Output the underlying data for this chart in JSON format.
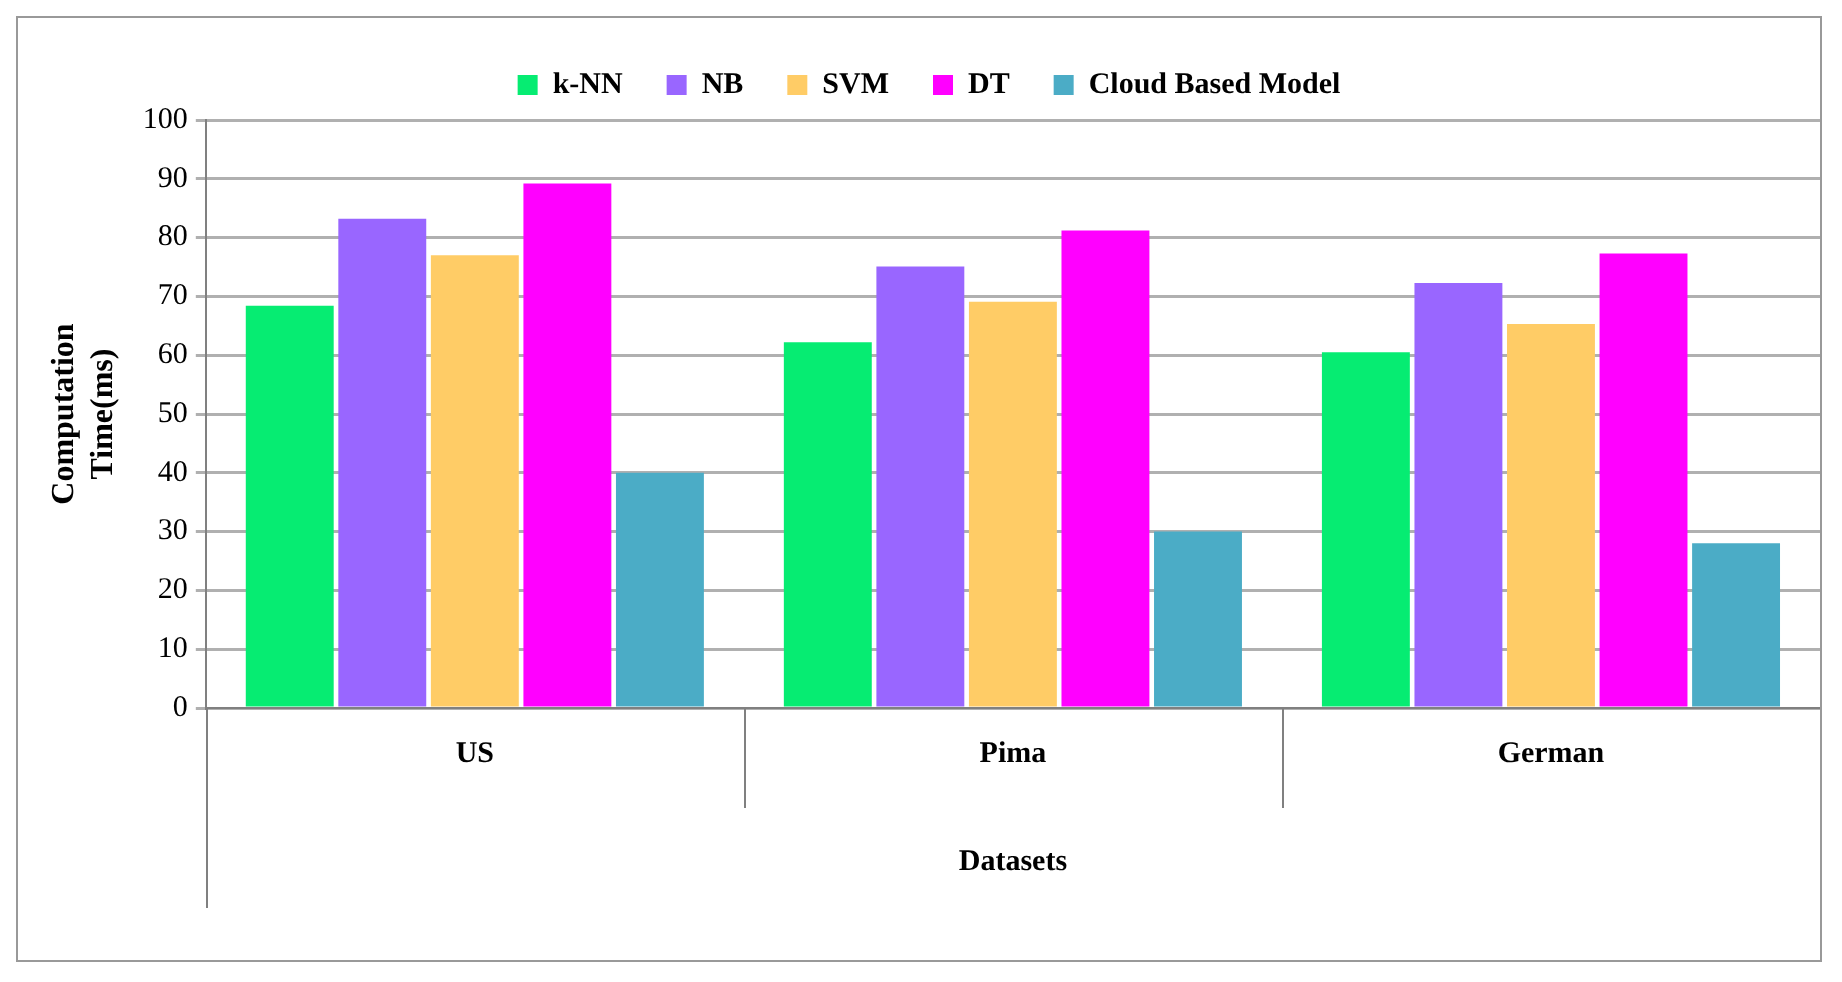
{
  "chart_data": {
    "type": "bar",
    "xlabel": "Datasets",
    "ylabel": "Computation Time(ms)",
    "categories": [
      "US",
      "Pima",
      "German"
    ],
    "series": [
      {
        "name": "k-NN",
        "color": "#06ec72",
        "values": [
          68.4,
          62.2,
          60.5
        ]
      },
      {
        "name": "NB",
        "color": "#9966ff",
        "values": [
          83.2,
          75.1,
          72.3
        ]
      },
      {
        "name": "SVM",
        "color": "#ffcc66",
        "values": [
          77,
          69.1,
          65.3
        ]
      },
      {
        "name": "DT",
        "color": "#ff00ff",
        "values": [
          89.2,
          81.2,
          77.3
        ]
      },
      {
        "name": "Cloud Based Model",
        "color": "#4bacc6",
        "values": [
          40,
          30,
          28
        ]
      }
    ],
    "ylim": [
      0,
      100
    ],
    "yticks": [
      0,
      10,
      20,
      30,
      40,
      50,
      60,
      70,
      80,
      90,
      100
    ],
    "grid": "y",
    "legend": "top"
  }
}
